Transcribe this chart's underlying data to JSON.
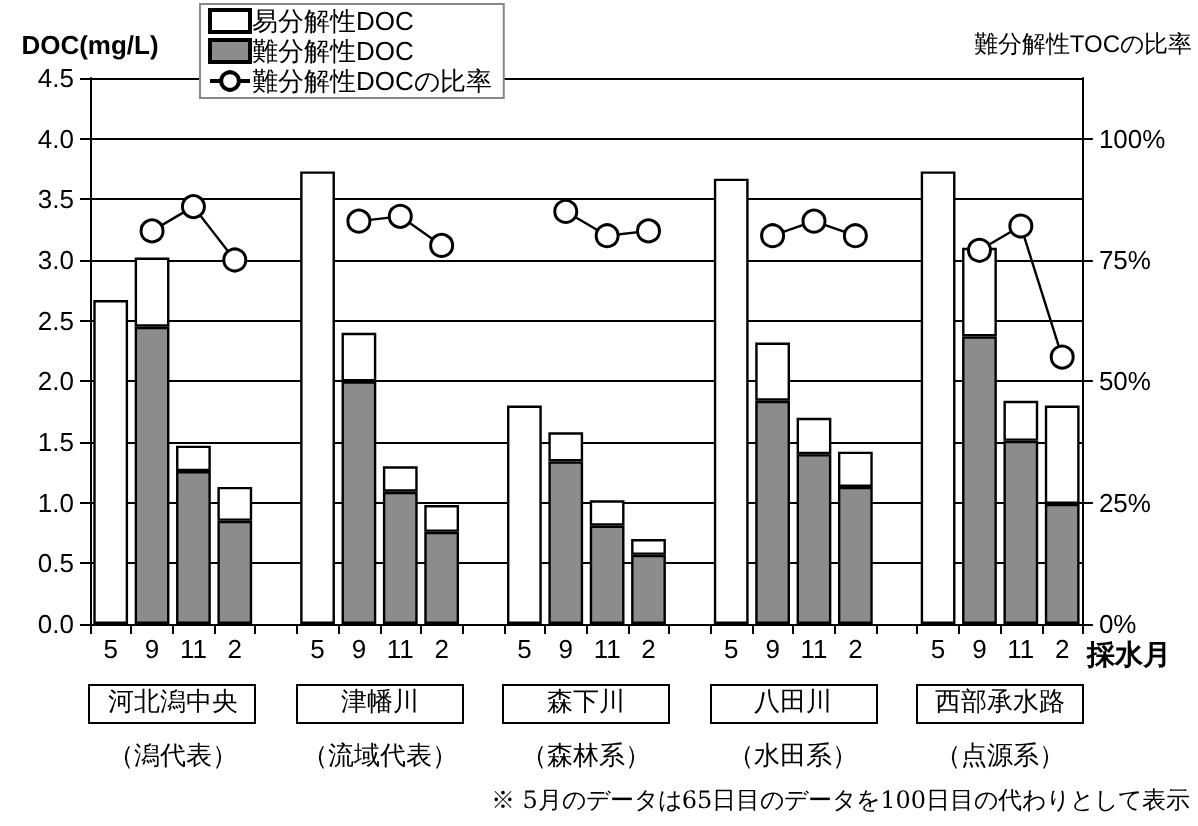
{
  "chart_data": {
    "type": "bar",
    "stacked": true,
    "grid": "y",
    "legend": "top left",
    "marker": "circle",
    "ylabel": "DOC(mg/L)",
    "y2label": "難分解性TOCの比率",
    "xlabel": "採水月",
    "categories": [
      "5",
      "9",
      "11",
      "2",
      null,
      "5",
      "9",
      "11",
      "2",
      null,
      "5",
      "9",
      "11",
      "2",
      null,
      "5",
      "9",
      "11",
      "2",
      null,
      "5",
      "9",
      "11",
      "2"
    ],
    "series": [
      {
        "name": "難分解性DOC",
        "color": "#8c8c8c",
        "values": [
          null,
          2.45,
          1.26,
          0.85,
          null,
          null,
          2.0,
          1.09,
          0.76,
          null,
          null,
          1.34,
          0.81,
          0.57,
          null,
          null,
          1.84,
          1.4,
          1.13,
          null,
          null,
          2.37,
          1.51,
          0.99
        ]
      },
      {
        "name": "易分解性DOC",
        "color": "#ffffff",
        "values": [
          2.67,
          0.57,
          0.21,
          0.28,
          null,
          3.73,
          0.4,
          0.21,
          0.22,
          null,
          1.8,
          0.24,
          0.21,
          0.13,
          null,
          3.67,
          0.48,
          0.3,
          0.29,
          null,
          3.73,
          0.73,
          0.33,
          0.81
        ]
      },
      {
        "name": "難分解性DOCの比率",
        "type": "line",
        "axis": "y2",
        "color": "#000000",
        "values": [
          null,
          81,
          86,
          75,
          null,
          null,
          83,
          84,
          78,
          null,
          null,
          85,
          80,
          81,
          null,
          null,
          80,
          83,
          80,
          null,
          null,
          77,
          82,
          55
        ]
      }
    ],
    "ylim": [
      0,
      4.5
    ],
    "yticks": [
      {
        "value": 0,
        "label": "0.0"
      },
      {
        "value": 0.5,
        "label": "0.5"
      },
      {
        "value": 1,
        "label": "1.0"
      },
      {
        "value": 1.5,
        "label": "1.5"
      },
      {
        "value": 2,
        "label": "2.0"
      },
      {
        "value": 2.5,
        "label": "2.5"
      },
      {
        "value": 3,
        "label": "3.0"
      },
      {
        "value": 3.5,
        "label": "3.5"
      },
      {
        "value": 4,
        "label": "4.0"
      },
      4.5
    ],
    "y2lim": [
      0,
      112.5
    ],
    "y2ticks": [
      {
        "value": 0,
        "label": "0%"
      },
      {
        "value": 25,
        "label": "25%"
      },
      {
        "value": 50,
        "label": "50%"
      },
      {
        "value": 75,
        "label": "75%"
      },
      {
        "value": 100,
        "label": "100%"
      }
    ],
    "annotations": [
      "河北潟中央",
      "（潟代表）",
      "津幡川",
      "（流域代表）",
      "森下川",
      "（森林系）",
      "八田川",
      "（水田系）",
      "西部承水路",
      "（点源系）",
      "※ 5月のデータは65日目のデータを100日目の代わりとして表示"
    ]
  }
}
